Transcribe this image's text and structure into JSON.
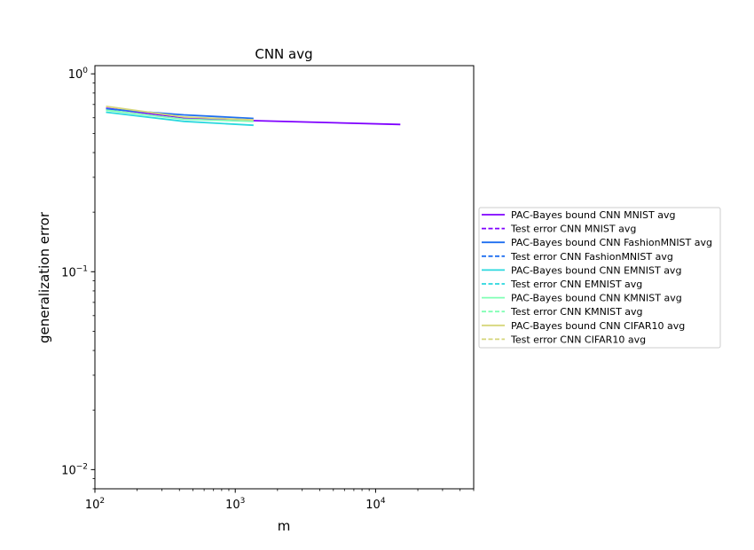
{
  "chart_data": {
    "type": "line",
    "title": "CNN avg",
    "xlabel": "m",
    "ylabel": "generalization error",
    "xscale": "log",
    "yscale": "log",
    "xlim": [
      100,
      50000
    ],
    "ylim": [
      0.008,
      1.1
    ],
    "grid": false,
    "legend_position": "right-outside",
    "x_major_ticks": [
      {
        "value": 100,
        "base": "10",
        "exp": "2"
      },
      {
        "value": 1000,
        "base": "10",
        "exp": "3"
      },
      {
        "value": 10000,
        "base": "10",
        "exp": "4"
      }
    ],
    "y_major_ticks": [
      {
        "value": 0.01,
        "base": "10",
        "exp": "−2"
      },
      {
        "value": 0.1,
        "base": "10",
        "exp": "−1"
      },
      {
        "value": 1,
        "base": "10",
        "exp": "0"
      }
    ],
    "series": [
      {
        "name": "PAC-Bayes bound CNN MNIST avg",
        "color": "#7f00ff",
        "dash": false,
        "x": [
          120,
          430,
          1350,
          15000
        ],
        "y": [
          0.67,
          0.6,
          0.58,
          0.555
        ]
      },
      {
        "name": "Test error CNN MNIST avg",
        "color": "#7f00ff",
        "dash": true,
        "x": [],
        "y": []
      },
      {
        "name": "PAC-Bayes bound CNN FashionMNIST avg",
        "color": "#1f6ff0",
        "dash": false,
        "x": [
          120,
          430,
          1350
        ],
        "y": [
          0.665,
          0.62,
          0.595
        ]
      },
      {
        "name": "Test error CNN FashionMNIST avg",
        "color": "#1f6ff0",
        "dash": true,
        "x": [],
        "y": []
      },
      {
        "name": "PAC-Bayes bound CNN EMNIST avg",
        "color": "#2ad8de",
        "dash": false,
        "x": [
          120,
          430,
          1350
        ],
        "y": [
          0.64,
          0.575,
          0.55
        ]
      },
      {
        "name": "Test error CNN EMNIST avg",
        "color": "#2ad8de",
        "dash": true,
        "x": [],
        "y": []
      },
      {
        "name": "PAC-Bayes bound CNN KMNIST avg",
        "color": "#80ffb4",
        "dash": false,
        "x": [
          120,
          430,
          1350
        ],
        "y": [
          0.655,
          0.59,
          0.575
        ]
      },
      {
        "name": "Test error CNN KMNIST avg",
        "color": "#80ffb4",
        "dash": true,
        "x": [],
        "y": []
      },
      {
        "name": "PAC-Bayes bound CNN CIFAR10 avg",
        "color": "#d6d67a",
        "dash": false,
        "x": [
          120,
          430,
          1350
        ],
        "y": [
          0.685,
          0.605,
          0.585
        ]
      },
      {
        "name": "Test error CNN CIFAR10 avg",
        "color": "#d6d67a",
        "dash": true,
        "x": [],
        "y": []
      }
    ]
  }
}
